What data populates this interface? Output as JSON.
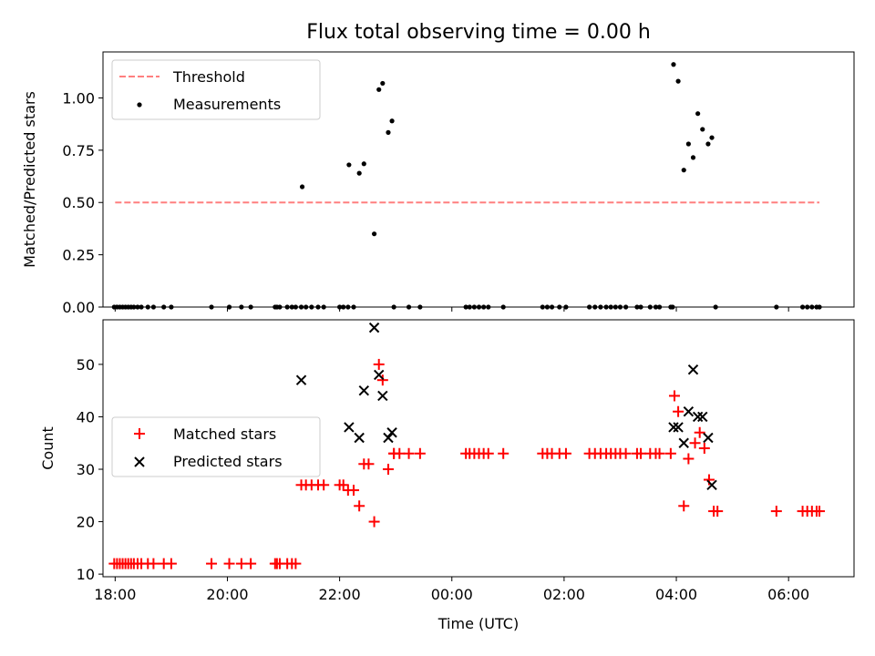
{
  "chart_data": [
    {
      "type": "scatter",
      "panel": "top",
      "title": "Flux total observing time = 0.00 h",
      "xlabel": "",
      "ylabel": "Matched/Predicted stars",
      "xlim": [
        "17:47",
        "07:10"
      ],
      "ylim": [
        0,
        1.22
      ],
      "yticks": [
        "0.00",
        "0.25",
        "0.50",
        "0.75",
        "1.00"
      ],
      "ytick_values": [
        0,
        0.25,
        0.5,
        0.75,
        1.0
      ],
      "legend_position": "top-left",
      "threshold": {
        "name": "Threshold",
        "color": "#ff7f7f",
        "style": "dashed",
        "value": 0.5,
        "x_from": "18:00",
        "x_to": "06:33"
      },
      "series": [
        {
          "name": "Measurements",
          "color": "#000000",
          "marker": "dot",
          "points": [
            [
              "17:59",
              0
            ],
            [
              "18:02",
              0
            ],
            [
              "18:05",
              0
            ],
            [
              "18:08",
              0
            ],
            [
              "18:11",
              0
            ],
            [
              "18:14",
              0
            ],
            [
              "18:17",
              0
            ],
            [
              "18:20",
              0
            ],
            [
              "18:24",
              0
            ],
            [
              "18:28",
              0
            ],
            [
              "18:35",
              0
            ],
            [
              "18:41",
              0
            ],
            [
              "18:52",
              0
            ],
            [
              "19:00",
              0
            ],
            [
              "19:43",
              0
            ],
            [
              "20:02",
              0
            ],
            [
              "20:15",
              0
            ],
            [
              "20:25",
              0
            ],
            [
              "20:51",
              0
            ],
            [
              "20:53",
              0
            ],
            [
              "20:56",
              0
            ],
            [
              "21:04",
              0
            ],
            [
              "21:09",
              0
            ],
            [
              "21:13",
              0
            ],
            [
              "21:19",
              0
            ],
            [
              "21:24",
              0
            ],
            [
              "21:30",
              0
            ],
            [
              "21:37",
              0
            ],
            [
              "21:43",
              0
            ],
            [
              "22:00",
              0
            ],
            [
              "22:04",
              0
            ],
            [
              "22:09",
              0
            ],
            [
              "22:15",
              0
            ],
            [
              "22:58",
              0
            ],
            [
              "23:14",
              0
            ],
            [
              "23:26",
              0
            ],
            [
              "00:15",
              0
            ],
            [
              "00:19",
              0
            ],
            [
              "00:24",
              0
            ],
            [
              "00:29",
              0
            ],
            [
              "00:34",
              0
            ],
            [
              "00:39",
              0
            ],
            [
              "00:55",
              0
            ],
            [
              "01:37",
              0
            ],
            [
              "01:42",
              0
            ],
            [
              "01:47",
              0
            ],
            [
              "01:55",
              0
            ],
            [
              "02:02",
              0
            ],
            [
              "02:27",
              0
            ],
            [
              "02:33",
              0
            ],
            [
              "02:39",
              0
            ],
            [
              "02:45",
              0
            ],
            [
              "02:50",
              0
            ],
            [
              "02:55",
              0
            ],
            [
              "03:00",
              0
            ],
            [
              "03:06",
              0
            ],
            [
              "03:18",
              0
            ],
            [
              "03:22",
              0
            ],
            [
              "03:32",
              0
            ],
            [
              "03:38",
              0
            ],
            [
              "03:42",
              0
            ],
            [
              "03:54",
              0
            ],
            [
              "03:56",
              0
            ],
            [
              "04:42",
              0
            ],
            [
              "05:47",
              0
            ],
            [
              "06:15",
              0
            ],
            [
              "06:20",
              0
            ],
            [
              "06:25",
              0
            ],
            [
              "06:30",
              0
            ],
            [
              "06:33",
              0
            ],
            [
              "21:20",
              0.575
            ],
            [
              "22:10",
              0.68
            ],
            [
              "22:21",
              0.64
            ],
            [
              "22:26",
              0.685
            ],
            [
              "22:37",
              0.35
            ],
            [
              "22:42",
              1.04
            ],
            [
              "22:46",
              1.07
            ],
            [
              "22:52",
              0.835
            ],
            [
              "22:56",
              0.89
            ],
            [
              "03:57",
              1.16
            ],
            [
              "04:02",
              1.08
            ],
            [
              "04:08",
              0.655
            ],
            [
              "04:13",
              0.78
            ],
            [
              "04:18",
              0.715
            ],
            [
              "04:23",
              0.925
            ],
            [
              "04:28",
              0.85
            ],
            [
              "04:34",
              0.78
            ],
            [
              "04:38",
              0.81
            ]
          ]
        }
      ]
    },
    {
      "type": "scatter",
      "panel": "bottom",
      "xlabel": "Time (UTC)",
      "ylabel": "Count",
      "xlim": [
        "17:47",
        "07:10"
      ],
      "ylim": [
        9.5,
        58.5
      ],
      "xticks": [
        "18:00",
        "20:00",
        "22:00",
        "00:00",
        "02:00",
        "04:00",
        "06:00"
      ],
      "yticks": [
        "10",
        "20",
        "30",
        "40",
        "50"
      ],
      "ytick_values": [
        10,
        20,
        30,
        40,
        50
      ],
      "legend_position": "center-left",
      "series": [
        {
          "name": "Matched stars",
          "color": "#ff0000",
          "marker": "plus",
          "points": [
            [
              "17:59",
              12
            ],
            [
              "18:02",
              12
            ],
            [
              "18:05",
              12
            ],
            [
              "18:08",
              12
            ],
            [
              "18:11",
              12
            ],
            [
              "18:14",
              12
            ],
            [
              "18:17",
              12
            ],
            [
              "18:20",
              12
            ],
            [
              "18:24",
              12
            ],
            [
              "18:28",
              12
            ],
            [
              "18:35",
              12
            ],
            [
              "18:41",
              12
            ],
            [
              "18:52",
              12
            ],
            [
              "19:00",
              12
            ],
            [
              "19:43",
              12
            ],
            [
              "20:02",
              12
            ],
            [
              "20:15",
              12
            ],
            [
              "20:25",
              12
            ],
            [
              "20:51",
              12
            ],
            [
              "20:53",
              12
            ],
            [
              "20:56",
              12
            ],
            [
              "21:04",
              12
            ],
            [
              "21:09",
              12
            ],
            [
              "21:13",
              12
            ],
            [
              "21:19",
              27
            ],
            [
              "21:24",
              27
            ],
            [
              "21:30",
              27
            ],
            [
              "21:37",
              27
            ],
            [
              "21:43",
              27
            ],
            [
              "22:00",
              27
            ],
            [
              "22:04",
              27
            ],
            [
              "22:09",
              26
            ],
            [
              "22:15",
              26
            ],
            [
              "22:21",
              23
            ],
            [
              "22:26",
              31
            ],
            [
              "22:31",
              31
            ],
            [
              "22:37",
              20
            ],
            [
              "22:42",
              50
            ],
            [
              "22:46",
              47
            ],
            [
              "22:52",
              30
            ],
            [
              "22:58",
              33
            ],
            [
              "22:58",
              33
            ],
            [
              "23:04",
              33
            ],
            [
              "23:14",
              33
            ],
            [
              "23:26",
              33
            ],
            [
              "00:15",
              33
            ],
            [
              "00:19",
              33
            ],
            [
              "00:24",
              33
            ],
            [
              "00:29",
              33
            ],
            [
              "00:34",
              33
            ],
            [
              "00:39",
              33
            ],
            [
              "00:55",
              33
            ],
            [
              "01:37",
              33
            ],
            [
              "01:42",
              33
            ],
            [
              "01:47",
              33
            ],
            [
              "01:55",
              33
            ],
            [
              "02:02",
              33
            ],
            [
              "02:27",
              33
            ],
            [
              "02:33",
              33
            ],
            [
              "02:39",
              33
            ],
            [
              "02:45",
              33
            ],
            [
              "02:50",
              33
            ],
            [
              "02:55",
              33
            ],
            [
              "03:00",
              33
            ],
            [
              "03:06",
              33
            ],
            [
              "03:18",
              33
            ],
            [
              "03:22",
              33
            ],
            [
              "03:32",
              33
            ],
            [
              "03:38",
              33
            ],
            [
              "03:42",
              33
            ],
            [
              "03:54",
              33
            ],
            [
              "03:58",
              44
            ],
            [
              "04:02",
              41
            ],
            [
              "04:08",
              23
            ],
            [
              "04:13",
              32
            ],
            [
              "04:20",
              35
            ],
            [
              "04:25",
              37
            ],
            [
              "04:30",
              34
            ],
            [
              "04:35",
              28
            ],
            [
              "04:40",
              22
            ],
            [
              "04:44",
              22
            ],
            [
              "05:47",
              22
            ],
            [
              "06:15",
              22
            ],
            [
              "06:20",
              22
            ],
            [
              "06:25",
              22
            ],
            [
              "06:30",
              22
            ],
            [
              "06:33",
              22
            ]
          ]
        },
        {
          "name": "Predicted stars",
          "color": "#000000",
          "marker": "x",
          "points": [
            [
              "21:19",
              47
            ],
            [
              "22:10",
              38
            ],
            [
              "22:21",
              36
            ],
            [
              "22:26",
              45
            ],
            [
              "22:37",
              57
            ],
            [
              "22:42",
              48
            ],
            [
              "22:46",
              44
            ],
            [
              "22:52",
              36
            ],
            [
              "22:56",
              37
            ],
            [
              "03:57",
              38
            ],
            [
              "04:02",
              38
            ],
            [
              "04:08",
              35
            ],
            [
              "04:13",
              41
            ],
            [
              "04:18",
              49
            ],
            [
              "04:23",
              40
            ],
            [
              "04:28",
              40
            ],
            [
              "04:34",
              36
            ],
            [
              "04:38",
              27
            ]
          ]
        }
      ]
    }
  ]
}
